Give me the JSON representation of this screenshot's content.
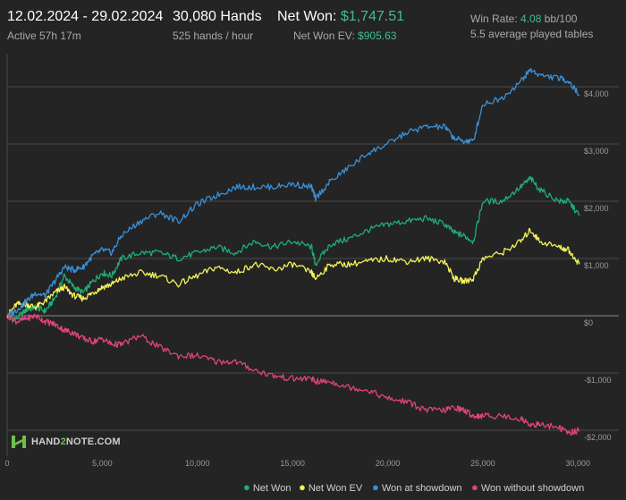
{
  "header": {
    "date_range": "12.02.2024 - 29.02.2024",
    "active": "Active 57h 17m",
    "hands": "30,080 Hands",
    "hands_rate": "525 hands / hour",
    "net_won_label": "Net Won:",
    "net_won_value": "$1,747.51",
    "net_won_ev_label": "Net Won  EV:",
    "net_won_ev_value": "$905.63",
    "win_rate_label": "Win Rate:",
    "win_rate_value": "4.08",
    "win_rate_unit": "bb/100",
    "tables": "5.5 average played tables"
  },
  "logo": {
    "prefix": "HAND",
    "mid": "2",
    "suffix": "NOTE.COM"
  },
  "colors": {
    "background": "#242424",
    "net_won": "#1fad76",
    "net_won_ev": "#f2f25a",
    "won_showdown": "#3a8fd6",
    "won_without_showdown": "#e0447a",
    "accent_green": "#3fbf8f"
  },
  "chart_data": {
    "type": "line",
    "xlim": [
      0,
      30080
    ],
    "ylim": [
      -2200,
      4400
    ],
    "x_ticks": [
      {
        "value": 0,
        "label": "0"
      },
      {
        "value": 5000,
        "label": "5,000"
      },
      {
        "value": 10000,
        "label": "10,000"
      },
      {
        "value": 15000,
        "label": "15,000"
      },
      {
        "value": 20000,
        "label": "20,000"
      },
      {
        "value": 25000,
        "label": "25,000"
      },
      {
        "value": 30000,
        "label": "30,000"
      }
    ],
    "y_ticks": [
      {
        "value": 4000,
        "label": "$4,000"
      },
      {
        "value": 3000,
        "label": "$3,000"
      },
      {
        "value": 2000,
        "label": "$2,000"
      },
      {
        "value": 1000,
        "label": "$1,000"
      },
      {
        "value": 0,
        "label": "$0"
      },
      {
        "value": -1000,
        "label": "-$1,000"
      },
      {
        "value": -2000,
        "label": "-$2,000"
      }
    ],
    "grid": true,
    "legend_position": "bottom-right",
    "series": [
      {
        "name": "Net Won",
        "key": "net_won",
        "color": "#1fad76",
        "x": [
          0,
          500,
          1000,
          1500,
          2000,
          2500,
          3000,
          3500,
          4000,
          4500,
          5000,
          5500,
          6000,
          7000,
          8000,
          9000,
          10000,
          11000,
          12000,
          13000,
          14000,
          15000,
          16000,
          16200,
          17000,
          18000,
          19000,
          20000,
          21000,
          22000,
          23000,
          23500,
          24000,
          24500,
          25000,
          26000,
          27000,
          27500,
          28000,
          29000,
          29500,
          30080
        ],
        "y": [
          0,
          -50,
          100,
          150,
          80,
          300,
          700,
          500,
          400,
          600,
          750,
          700,
          1000,
          1100,
          1100,
          1000,
          1100,
          1200,
          1100,
          1300,
          1200,
          1300,
          1200,
          900,
          1250,
          1350,
          1500,
          1600,
          1650,
          1700,
          1600,
          1450,
          1400,
          1300,
          2000,
          2000,
          2250,
          2400,
          2200,
          2000,
          2000,
          1750
        ]
      },
      {
        "name": "Net Won  EV",
        "key": "net_won_ev",
        "color": "#f2f25a",
        "x": [
          0,
          500,
          1000,
          1500,
          2000,
          2500,
          3000,
          3500,
          4000,
          4500,
          5000,
          5500,
          6000,
          7000,
          8000,
          9000,
          10000,
          11000,
          12000,
          13000,
          14000,
          15000,
          16000,
          16200,
          17000,
          18000,
          19000,
          20000,
          21000,
          22000,
          23000,
          23500,
          24000,
          24500,
          25000,
          26000,
          27000,
          27500,
          28000,
          29000,
          29500,
          30080
        ],
        "y": [
          0,
          200,
          200,
          150,
          250,
          400,
          500,
          350,
          300,
          400,
          500,
          550,
          650,
          750,
          700,
          550,
          700,
          850,
          750,
          900,
          800,
          900,
          750,
          650,
          900,
          900,
          950,
          1000,
          950,
          1000,
          950,
          650,
          600,
          650,
          1000,
          1100,
          1300,
          1500,
          1300,
          1200,
          1150,
          900
        ]
      },
      {
        "name": "Won at showdown",
        "key": "won_showdown",
        "color": "#3a8fd6",
        "x": [
          0,
          500,
          1000,
          1500,
          2000,
          2500,
          3000,
          3500,
          4000,
          4500,
          5000,
          5500,
          6000,
          7000,
          8000,
          9000,
          10000,
          11000,
          12000,
          13000,
          14000,
          15000,
          16000,
          16200,
          17000,
          18000,
          19000,
          20000,
          21000,
          22000,
          23000,
          23500,
          24000,
          24500,
          25000,
          26000,
          27000,
          27500,
          28000,
          29000,
          29500,
          30080
        ],
        "y": [
          0,
          100,
          250,
          400,
          350,
          600,
          850,
          800,
          850,
          1050,
          1150,
          1100,
          1400,
          1650,
          1800,
          1650,
          1950,
          2100,
          2250,
          2250,
          2250,
          2300,
          2250,
          2050,
          2350,
          2600,
          2850,
          3000,
          3200,
          3300,
          3300,
          3100,
          3050,
          3050,
          3700,
          3800,
          4100,
          4300,
          4200,
          4150,
          4100,
          3850
        ]
      },
      {
        "name": "Won without showdown",
        "key": "won_without_showdown",
        "color": "#e0447a",
        "x": [
          0,
          500,
          1000,
          1500,
          2000,
          2500,
          3000,
          3500,
          4000,
          4500,
          5000,
          5500,
          6000,
          7000,
          8000,
          9000,
          10000,
          11000,
          12000,
          13000,
          14000,
          15000,
          16000,
          16200,
          17000,
          18000,
          19000,
          20000,
          21000,
          22000,
          23000,
          23500,
          24000,
          24500,
          25000,
          26000,
          27000,
          27500,
          28000,
          29000,
          29500,
          30080
        ],
        "y": [
          0,
          -100,
          -50,
          0,
          -100,
          -150,
          -250,
          -300,
          -400,
          -450,
          -400,
          -500,
          -500,
          -350,
          -550,
          -700,
          -700,
          -800,
          -800,
          -950,
          -1050,
          -1100,
          -1100,
          -1150,
          -1150,
          -1250,
          -1300,
          -1450,
          -1500,
          -1650,
          -1650,
          -1600,
          -1650,
          -1750,
          -1750,
          -1750,
          -1800,
          -1900,
          -1900,
          -1950,
          -2050,
          -2000
        ]
      }
    ]
  }
}
